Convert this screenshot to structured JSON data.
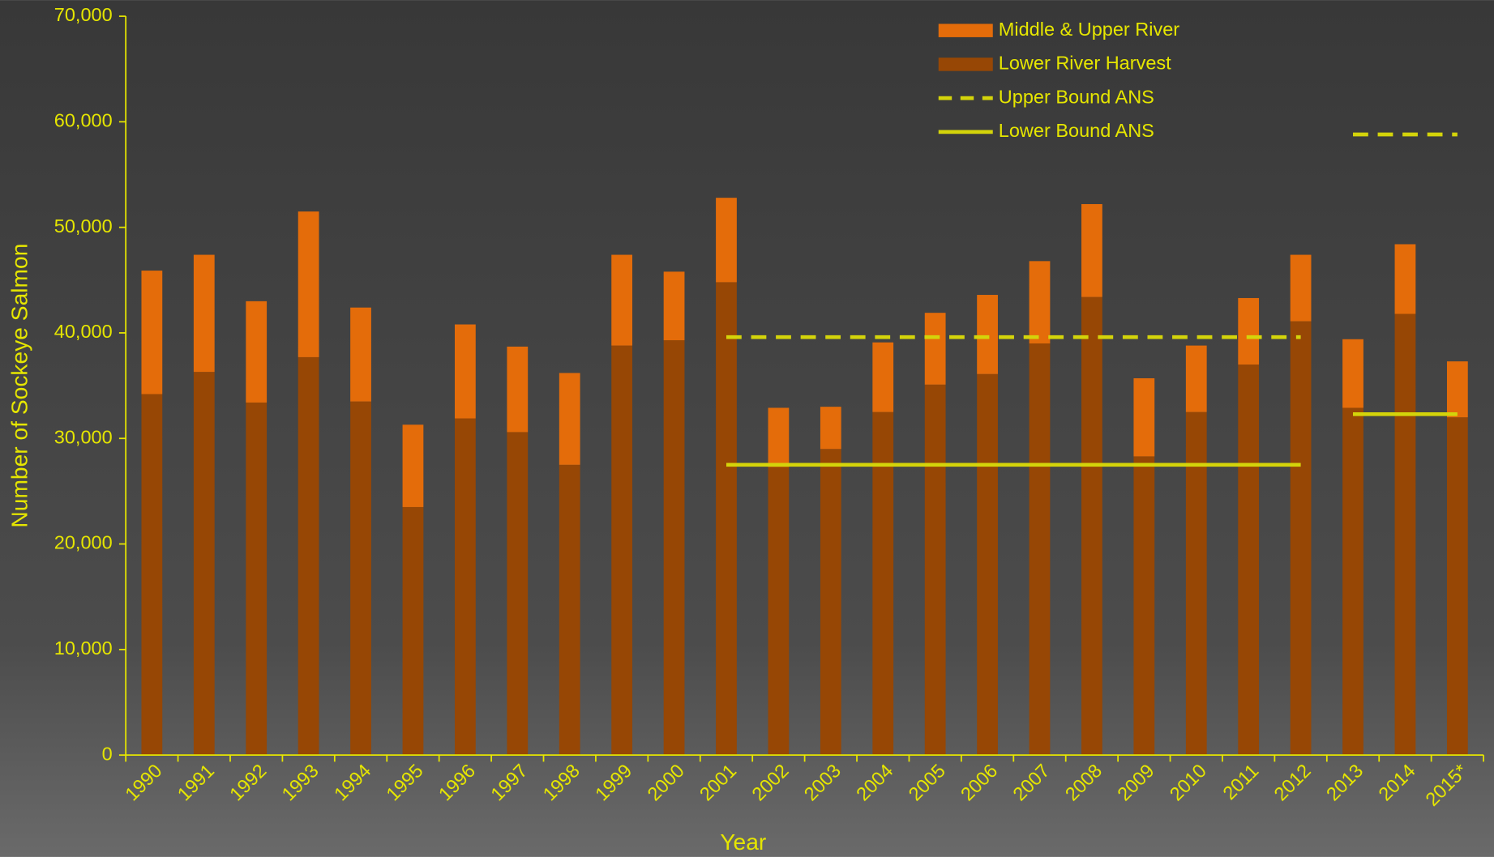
{
  "chart_data": {
    "type": "bar",
    "stacked": true,
    "x_label": "Year",
    "y_label": "Number of Sockeye Salmon",
    "categories": [
      "1990",
      "1991",
      "1992",
      "1993",
      "1994",
      "1995",
      "1996",
      "1997",
      "1998",
      "1999",
      "2000",
      "2001",
      "2002",
      "2003",
      "2004",
      "2005",
      "2006",
      "2007",
      "2008",
      "2009",
      "2010",
      "2011",
      "2012",
      "2013",
      "2014",
      "2015*"
    ],
    "series": [
      {
        "name": "Lower River Harvest",
        "color": "#974705",
        "values": [
          34200,
          36300,
          33400,
          37700,
          33500,
          23500,
          31900,
          30600,
          27500,
          38800,
          39300,
          44800,
          27300,
          29000,
          32500,
          35100,
          36100,
          39000,
          43400,
          28300,
          32500,
          37000,
          41100,
          32900,
          41800,
          32000
        ]
      },
      {
        "name": "Middle & Upper River",
        "color": "#e46c0a",
        "values": [
          11700,
          11100,
          9600,
          13800,
          8900,
          7800,
          8900,
          8100,
          8700,
          8600,
          6500,
          8000,
          5600,
          4000,
          6600,
          6800,
          7500,
          7800,
          8800,
          7400,
          6300,
          6300,
          6300,
          6500,
          6600,
          5300
        ]
      }
    ],
    "reference_lines": [
      {
        "name": "Upper Bound ANS",
        "color": "#d4d40a",
        "dashed": true,
        "segments": [
          {
            "from": "2001",
            "to": "2012",
            "value": 39600
          },
          {
            "from": "2013",
            "to": "2015*",
            "value": 58800
          }
        ]
      },
      {
        "name": "Lower Bound ANS",
        "color": "#d4d40a",
        "dashed": false,
        "segments": [
          {
            "from": "2001",
            "to": "2012",
            "value": 27500
          },
          {
            "from": "2013",
            "to": "2015*",
            "value": 32300
          }
        ]
      }
    ],
    "legend_order": [
      "Middle & Upper River",
      "Lower River Harvest",
      "Upper Bound ANS",
      "Lower Bound ANS"
    ],
    "legend_position": "top-right",
    "ylim": [
      0,
      70000
    ],
    "yticks": [
      0,
      {
        "value": 10000,
        "label": "10,000"
      },
      {
        "value": 20000,
        "label": "20,000"
      },
      {
        "value": 30000,
        "label": "30,000"
      },
      {
        "value": 40000,
        "label": "40,000"
      },
      {
        "value": 50000,
        "label": "50,000"
      },
      {
        "value": 60000,
        "label": "60,000"
      },
      {
        "value": 70000,
        "label": "70,000"
      }
    ],
    "grid": false,
    "text_color": "#e6e600"
  }
}
